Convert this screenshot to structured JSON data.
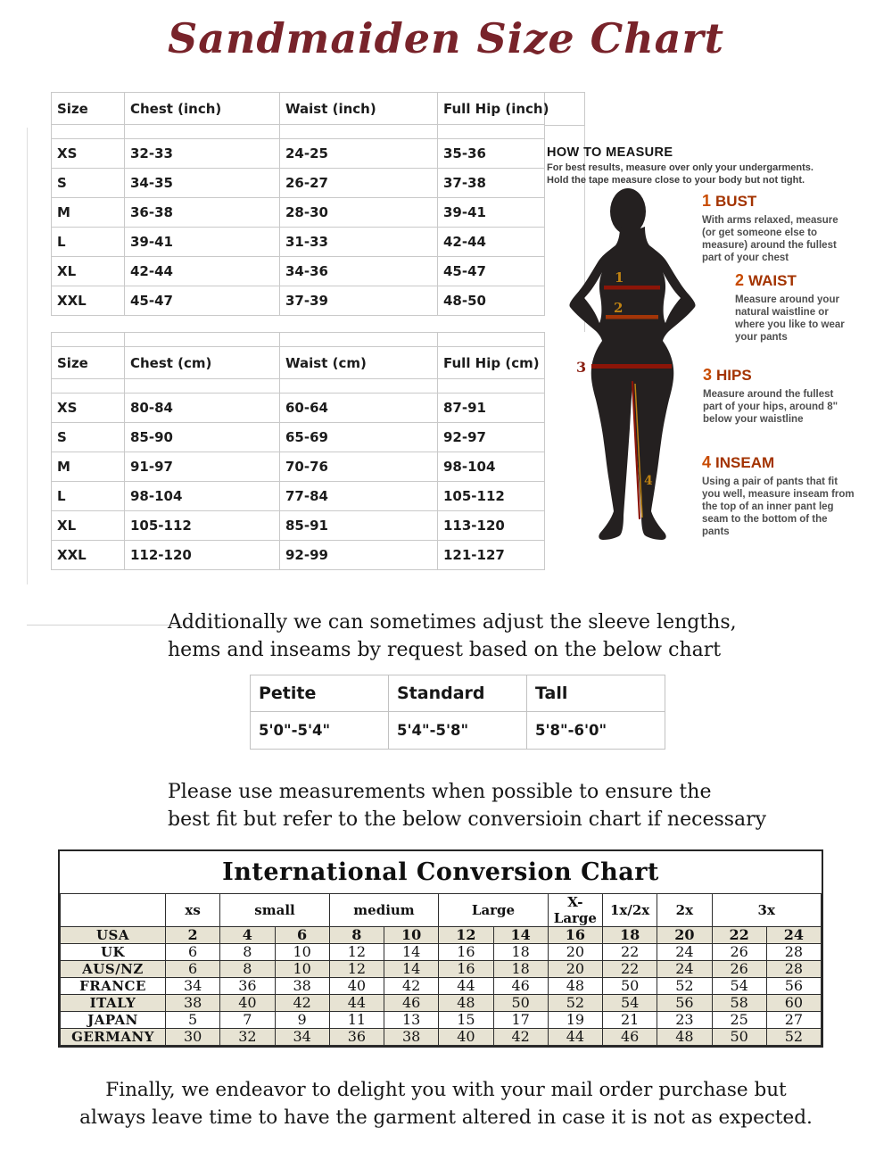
{
  "title": "Sandmaiden Size Chart",
  "colors": {
    "title_maroon": "#78232a",
    "measure_line_red": "#8c1508",
    "label_gold": "#c08312",
    "step_heading_red": "#a33300",
    "step_number_orange": "#c84b00",
    "chart_shade_beige": "#e7e3d3",
    "silhouette_black": "#242020"
  },
  "size_table_inch": {
    "headers": [
      "Size",
      "Chest (inch)",
      "Waist (inch)",
      "Full Hip (inch)"
    ],
    "rows": [
      [
        "XS",
        "32-33",
        "24-25",
        "35-36"
      ],
      [
        "S",
        "34-35",
        "26-27",
        "37-38"
      ],
      [
        "M",
        "36-38",
        "28-30",
        "39-41"
      ],
      [
        "L",
        "39-41",
        "31-33",
        "42-44"
      ],
      [
        "XL",
        "42-44",
        "34-36",
        "45-47"
      ],
      [
        "XXL",
        "45-47",
        "37-39",
        "48-50"
      ]
    ]
  },
  "size_table_cm": {
    "headers": [
      "Size",
      "Chest (cm)",
      "Waist (cm)",
      "Full Hip (cm)"
    ],
    "rows": [
      [
        "XS",
        "80-84",
        "60-64",
        "87-91"
      ],
      [
        "S",
        "85-90",
        "65-69",
        "92-97"
      ],
      [
        "M",
        "91-97",
        "70-76",
        "98-104"
      ],
      [
        "L",
        "98-104",
        "77-84",
        "105-112"
      ],
      [
        "XL",
        "105-112",
        "85-91",
        "113-120"
      ],
      [
        "XXL",
        "112-120",
        "92-99",
        "121-127"
      ]
    ]
  },
  "how_to_measure": {
    "title": "HOW TO MEASURE",
    "intro_line1": "For best results, measure over only your undergarments.",
    "intro_line2": "Hold the tape measure close to your body but not tight.",
    "figure_labels": {
      "bust": "1",
      "waist": "2",
      "hips": "3",
      "inseam": "4"
    },
    "steps": [
      {
        "number": "1",
        "name": "BUST",
        "text": "With arms relaxed, measure (or get someone else to measure) around the fullest part of your chest"
      },
      {
        "number": "2",
        "name": "WAIST",
        "text": "Measure around your natural waistline or where you like to wear your pants"
      },
      {
        "number": "3",
        "name": "HIPS",
        "text": "Measure around  the fullest part of your hips, around  8\" below your waistline"
      },
      {
        "number": "4",
        "name": "INSEAM",
        "text": "Using a pair of pants that fit you well, measure inseam from the top of an inner pant leg seam to the bottom of the pants"
      }
    ]
  },
  "adjust_note": {
    "line1": "Additionally we can sometimes adjust the sleeve lengths,",
    "line2": "hems and inseams by request based on the below chart"
  },
  "height_table": {
    "headers": [
      "Petite",
      "Standard",
      "Tall"
    ],
    "values": [
      "5'0\"-5'4\"",
      "5'4\"-5'8\"",
      "5'8\"-6'0\""
    ]
  },
  "measure_note": {
    "line1": "Please use measurements when possible to ensure the",
    "line2": "best fit but refer to the below conversioin chart if necessary"
  },
  "conversion_chart": {
    "title": "International Conversion Chart",
    "column_groups": [
      {
        "label": "xs",
        "span": 1
      },
      {
        "label": "small",
        "span": 2
      },
      {
        "label": "medium",
        "span": 2
      },
      {
        "label": "Large",
        "span": 2
      },
      {
        "label": "X-Large",
        "span": 1
      },
      {
        "label": "1x/2x",
        "span": 1
      },
      {
        "label": "2x",
        "span": 1
      },
      {
        "label": "3x",
        "span": 2
      }
    ],
    "rows": [
      {
        "label": "USA",
        "values": [
          "2",
          "4",
          "6",
          "8",
          "10",
          "12",
          "14",
          "16",
          "18",
          "20",
          "22",
          "24"
        ]
      },
      {
        "label": "UK",
        "values": [
          "6",
          "8",
          "10",
          "12",
          "14",
          "16",
          "18",
          "20",
          "22",
          "24",
          "26",
          "28"
        ]
      },
      {
        "label": "AUS/NZ",
        "values": [
          "6",
          "8",
          "10",
          "12",
          "14",
          "16",
          "18",
          "20",
          "22",
          "24",
          "26",
          "28"
        ]
      },
      {
        "label": "FRANCE",
        "values": [
          "34",
          "36",
          "38",
          "40",
          "42",
          "44",
          "46",
          "48",
          "50",
          "52",
          "54",
          "56"
        ]
      },
      {
        "label": "ITALY",
        "values": [
          "38",
          "40",
          "42",
          "44",
          "46",
          "48",
          "50",
          "52",
          "54",
          "56",
          "58",
          "60"
        ]
      },
      {
        "label": "JAPAN",
        "values": [
          "5",
          "7",
          "9",
          "11",
          "13",
          "15",
          "17",
          "19",
          "21",
          "23",
          "25",
          "27"
        ]
      },
      {
        "label": "GERMANY",
        "values": [
          "30",
          "32",
          "34",
          "36",
          "38",
          "40",
          "42",
          "44",
          "46",
          "48",
          "50",
          "52"
        ]
      }
    ]
  },
  "footer_note": {
    "line1": "Finally, we endeavor to delight you with your mail order purchase but",
    "line2": "always leave time to have the garment altered in case it is not as expected."
  }
}
